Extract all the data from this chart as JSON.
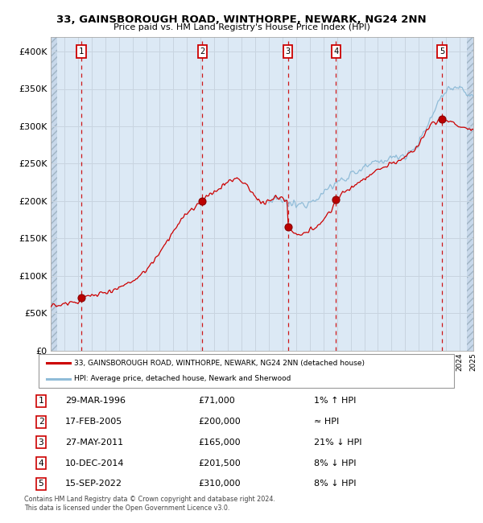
{
  "title": "33, GAINSBOROUGH ROAD, WINTHORPE, NEWARK, NG24 2NN",
  "subtitle": "Price paid vs. HM Land Registry's House Price Index (HPI)",
  "bg_color": "#dce9f5",
  "hatch_bg_color": "#c8d8ea",
  "grid_color": "#c8d4e0",
  "sale_color": "#cc0000",
  "hpi_color": "#90bcd8",
  "ylim": [
    0,
    420000
  ],
  "yticks": [
    0,
    50000,
    100000,
    150000,
    200000,
    250000,
    300000,
    350000,
    400000
  ],
  "xlim": [
    1994,
    2025
  ],
  "sales": [
    {
      "label": "1",
      "date_num": 1996.24,
      "price": 71000
    },
    {
      "label": "2",
      "date_num": 2005.12,
      "price": 200000
    },
    {
      "label": "3",
      "date_num": 2011.4,
      "price": 165000
    },
    {
      "label": "4",
      "date_num": 2014.93,
      "price": 201500
    },
    {
      "label": "5",
      "date_num": 2022.71,
      "price": 310000
    }
  ],
  "legend_sale_label": "33, GAINSBOROUGH ROAD, WINTHORPE, NEWARK, NG24 2NN (detached house)",
  "legend_hpi_label": "HPI: Average price, detached house, Newark and Sherwood",
  "table_rows": [
    {
      "num": "1",
      "date": "29-MAR-1996",
      "price": "£71,000",
      "rel": "1% ↑ HPI"
    },
    {
      "num": "2",
      "date": "17-FEB-2005",
      "price": "£200,000",
      "rel": "≈ HPI"
    },
    {
      "num": "3",
      "date": "27-MAY-2011",
      "price": "£165,000",
      "rel": "21% ↓ HPI"
    },
    {
      "num": "4",
      "date": "10-DEC-2014",
      "price": "£201,500",
      "rel": "8% ↓ HPI"
    },
    {
      "num": "5",
      "date": "15-SEP-2022",
      "price": "£310,000",
      "rel": "8% ↓ HPI"
    }
  ],
  "footnote": "Contains HM Land Registry data © Crown copyright and database right 2024.\nThis data is licensed under the Open Government Licence v3.0."
}
